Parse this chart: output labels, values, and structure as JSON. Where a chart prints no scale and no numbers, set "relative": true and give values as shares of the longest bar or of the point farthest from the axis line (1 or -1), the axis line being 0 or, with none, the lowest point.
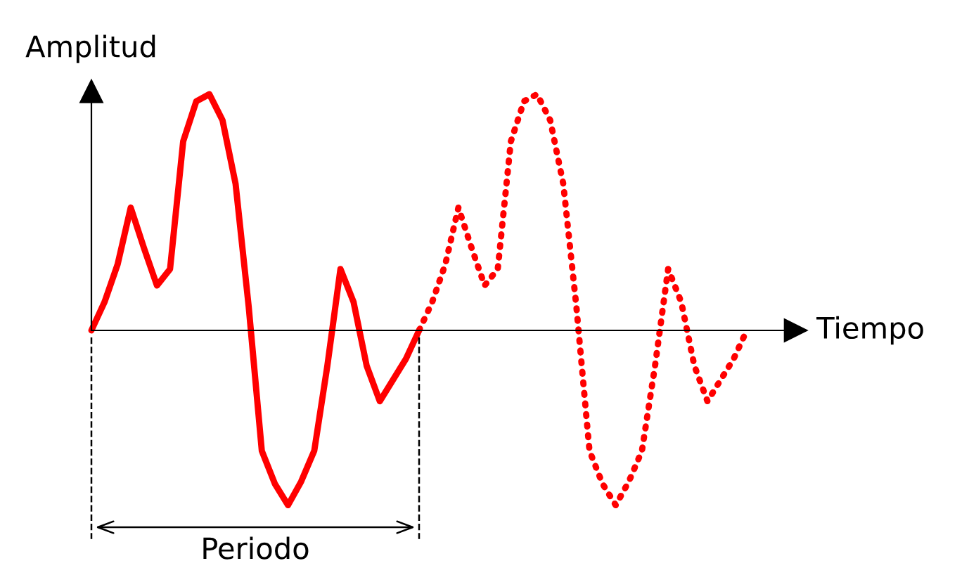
{
  "chart_data": {
    "type": "line",
    "relative": true,
    "xlabel": "Tiempo",
    "ylabel": "Amplitud",
    "categories": [
      null,
      null,
      null,
      null,
      null,
      null,
      null,
      null,
      null,
      null,
      null,
      null,
      null,
      null,
      null,
      null,
      null,
      null,
      null,
      null,
      null,
      null,
      null,
      null,
      null,
      null,
      null,
      null,
      null,
      null,
      null,
      null,
      null,
      null,
      null,
      null,
      null,
      null,
      null,
      null,
      null,
      null,
      null,
      null,
      null,
      null,
      null,
      null,
      null,
      null,
      null
    ],
    "series": [
      {
        "color": "#ff0000",
        "line_style": "solid",
        "values": [
          0,
          0.12,
          0.28,
          0.52,
          0.35,
          0.19,
          0.26,
          0.8,
          0.97,
          1.0,
          0.89,
          0.62,
          0.1,
          -0.51,
          -0.65,
          -0.74,
          -0.64,
          -0.51,
          -0.15,
          0.26,
          0.12,
          -0.15,
          -0.3,
          -0.21,
          -0.12,
          0,
          null,
          null,
          null,
          null,
          null,
          null,
          null,
          null,
          null,
          null,
          null,
          null,
          null,
          null,
          null,
          null,
          null,
          null,
          null,
          null,
          null,
          null,
          null,
          null,
          null
        ]
      },
      {
        "color": "#ff0000",
        "line_style": "dotted",
        "values": [
          null,
          null,
          null,
          null,
          null,
          null,
          null,
          null,
          null,
          null,
          null,
          null,
          null,
          null,
          null,
          null,
          null,
          null,
          null,
          null,
          null,
          null,
          null,
          null,
          null,
          0,
          0.12,
          0.28,
          0.52,
          0.35,
          0.19,
          0.26,
          0.8,
          0.97,
          1.0,
          0.89,
          0.62,
          0.1,
          -0.51,
          -0.65,
          -0.74,
          -0.64,
          -0.51,
          -0.15,
          0.26,
          0.12,
          -0.15,
          -0.3,
          -0.21,
          -0.12,
          0
        ]
      }
    ],
    "annotations": [
      "Periodo"
    ],
    "legend": false,
    "marker": "none"
  }
}
